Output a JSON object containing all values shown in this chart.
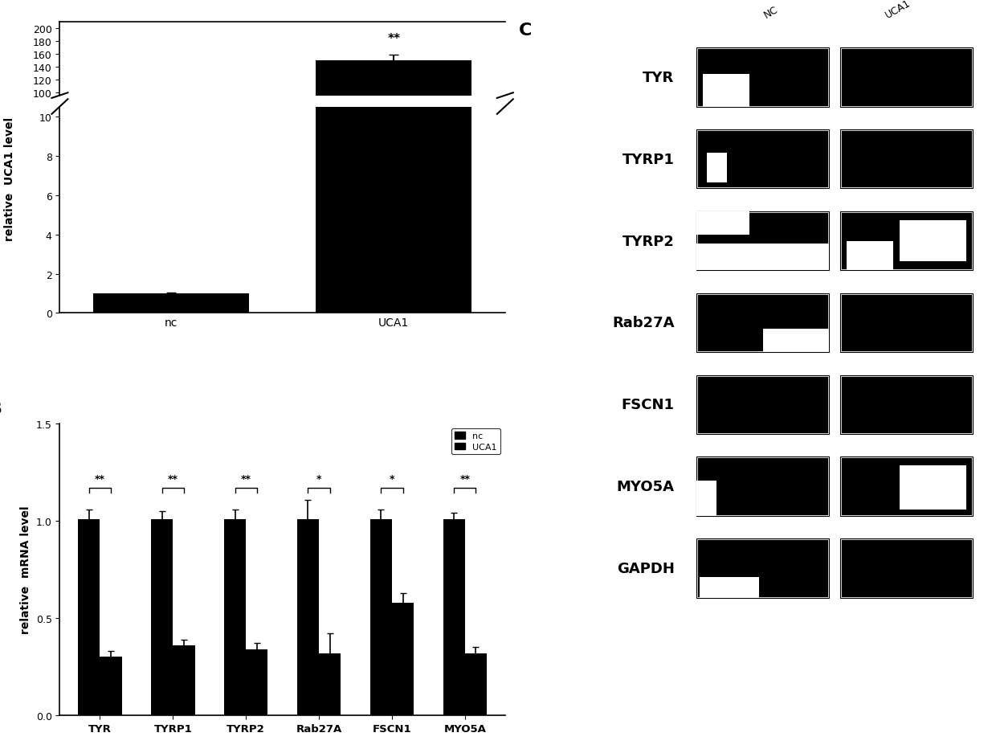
{
  "panel_A": {
    "categories": [
      "nc",
      "UCA1"
    ],
    "values": [
      1.0,
      150.0
    ],
    "errors": [
      0.05,
      8.0
    ],
    "ylabel": "relative  UCA1 level",
    "bar_color": "#000000",
    "yticks_lower": [
      0,
      2,
      4,
      6,
      8,
      10
    ],
    "yticks_upper": [
      100,
      120,
      140,
      160,
      180,
      200
    ],
    "sig_label": "**"
  },
  "panel_B": {
    "categories": [
      "TYR",
      "TYRP1",
      "TYRP2",
      "Rab27A",
      "FSCN1",
      "MYO5A"
    ],
    "nc_values": [
      1.01,
      1.01,
      1.01,
      1.01,
      1.01,
      1.01
    ],
    "uca1_values": [
      0.3,
      0.36,
      0.34,
      0.32,
      0.58,
      0.32
    ],
    "nc_errors": [
      0.05,
      0.04,
      0.05,
      0.1,
      0.05,
      0.03
    ],
    "uca1_errors": [
      0.03,
      0.03,
      0.03,
      0.1,
      0.05,
      0.03
    ],
    "ylabel": "relative  mRNA level",
    "bar_color": "#000000",
    "ylim": [
      0,
      1.5
    ],
    "yticks": [
      0.0,
      0.5,
      1.0,
      1.5
    ],
    "sig_labels": [
      "**",
      "**",
      "**",
      "*",
      "*",
      "**"
    ],
    "legend_nc": "nc",
    "legend_uca1": "UCA1"
  },
  "panel_C": {
    "labels": [
      "TYR",
      "TYRP1",
      "TYRP2",
      "Rab27A",
      "FSCN1",
      "MYO5A",
      "GAPDH"
    ],
    "col_labels": [
      "NC",
      "UCA1"
    ]
  },
  "bg_color": "#ffffff",
  "text_color": "#000000"
}
